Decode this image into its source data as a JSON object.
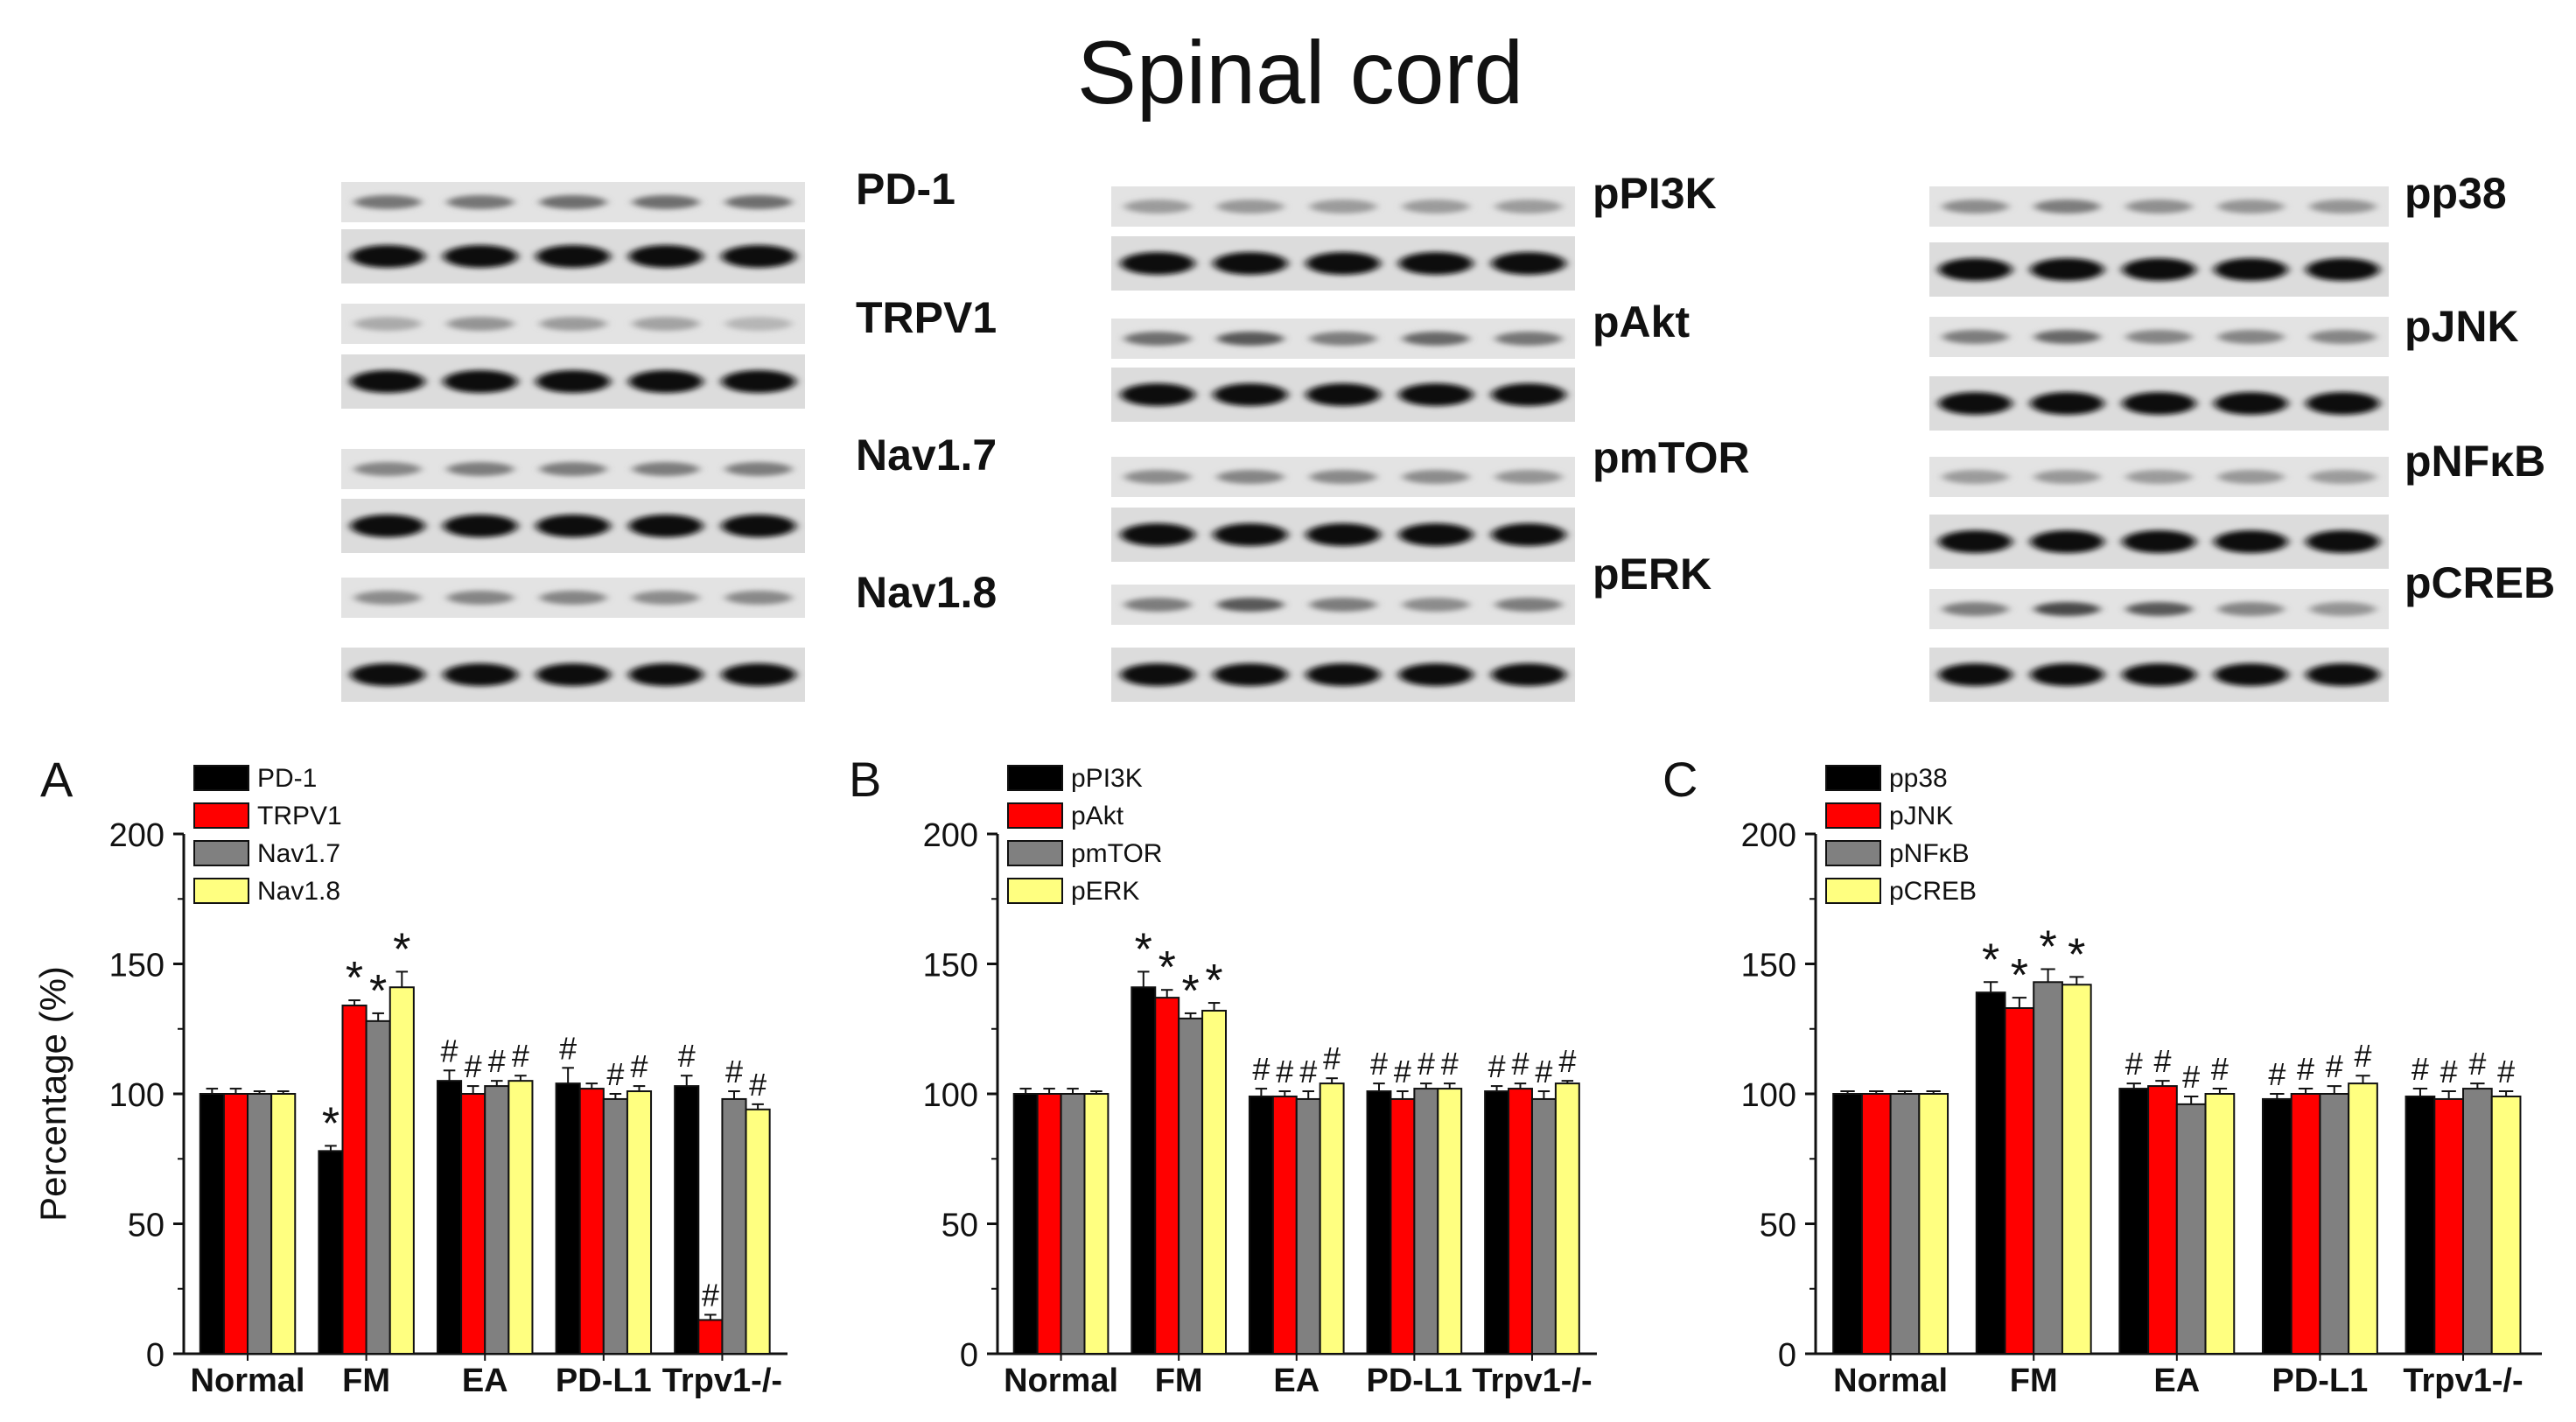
{
  "figure": {
    "title": "Spinal cord",
    "y_axis_label": "Percentage (%)",
    "panel_letters": [
      "A",
      "B",
      "C"
    ]
  },
  "western_blots": [
    {
      "labels": [
        "PD-1",
        "TRPV1",
        "Nav1.7",
        "Nav1.8"
      ],
      "lanes": 5,
      "phospho_intensity": [
        [
          0.55,
          0.55,
          0.6,
          0.6,
          0.6
        ],
        [
          0.2,
          0.35,
          0.3,
          0.25,
          0.12
        ],
        [
          0.45,
          0.5,
          0.5,
          0.5,
          0.5
        ],
        [
          0.4,
          0.45,
          0.45,
          0.4,
          0.42
        ]
      ]
    },
    {
      "labels": [
        "pPI3K",
        "pAkt",
        "pmTOR",
        "pERK"
      ],
      "lanes": 5,
      "phospho_intensity": [
        [
          0.3,
          0.32,
          0.3,
          0.3,
          0.3
        ],
        [
          0.6,
          0.75,
          0.5,
          0.65,
          0.55
        ],
        [
          0.4,
          0.45,
          0.42,
          0.4,
          0.35
        ],
        [
          0.5,
          0.75,
          0.5,
          0.4,
          0.5
        ]
      ]
    },
    {
      "labels": [
        "pp38",
        "pJNK",
        "pNFκB",
        "pCREB"
      ],
      "lanes": 5,
      "phospho_intensity": [
        [
          0.4,
          0.5,
          0.38,
          0.35,
          0.35
        ],
        [
          0.5,
          0.65,
          0.45,
          0.45,
          0.45
        ],
        [
          0.3,
          0.32,
          0.3,
          0.32,
          0.3
        ],
        [
          0.5,
          0.85,
          0.75,
          0.45,
          0.35
        ]
      ]
    }
  ],
  "colors": {
    "series": [
      "#000000",
      "#ff0000",
      "#808080",
      "#ffff80"
    ]
  },
  "chart_data": [
    {
      "type": "bar",
      "panel": "A",
      "categories": [
        "Normal",
        "FM",
        "EA",
        "PD-L1",
        "Trpv1-/-"
      ],
      "ylim": [
        0,
        200
      ],
      "yticks": [
        0,
        50,
        100,
        150,
        200
      ],
      "legend_position": "top-left",
      "series": [
        {
          "name": "PD-1",
          "values": [
            100,
            78,
            105,
            104,
            103
          ],
          "errors": [
            2,
            2,
            4,
            6,
            4
          ]
        },
        {
          "name": "TRPV1",
          "values": [
            100,
            134,
            100,
            102,
            13
          ],
          "errors": [
            2,
            2,
            3,
            2,
            2
          ]
        },
        {
          "name": "Nav1.7",
          "values": [
            100,
            128,
            103,
            98,
            98
          ],
          "errors": [
            1,
            3,
            2,
            2,
            3
          ]
        },
        {
          "name": "Nav1.8",
          "values": [
            100,
            141,
            105,
            101,
            94
          ],
          "errors": [
            1,
            6,
            2,
            2,
            2
          ]
        }
      ],
      "annotations": [
        [
          "",
          "",
          "",
          ""
        ],
        [
          "*",
          "*",
          "*",
          "*"
        ],
        [
          "#",
          "#",
          "#",
          "#"
        ],
        [
          "#",
          "",
          "#",
          "#"
        ],
        [
          "#",
          "#",
          "#",
          "#"
        ]
      ]
    },
    {
      "type": "bar",
      "panel": "B",
      "categories": [
        "Normal",
        "FM",
        "EA",
        "PD-L1",
        "Trpv1-/-"
      ],
      "ylim": [
        0,
        200
      ],
      "yticks": [
        0,
        50,
        100,
        150,
        200
      ],
      "legend_position": "top-left",
      "series": [
        {
          "name": "pPI3K",
          "values": [
            100,
            141,
            99,
            101,
            101
          ],
          "errors": [
            2,
            6,
            3,
            3,
            2
          ]
        },
        {
          "name": "pAkt",
          "values": [
            100,
            137,
            99,
            98,
            102
          ],
          "errors": [
            2,
            3,
            2,
            3,
            2
          ]
        },
        {
          "name": "pmTOR",
          "values": [
            100,
            129,
            98,
            102,
            98
          ],
          "errors": [
            2,
            2,
            3,
            2,
            3
          ]
        },
        {
          "name": "pERK",
          "values": [
            100,
            132,
            104,
            102,
            104
          ],
          "errors": [
            1,
            3,
            2,
            2,
            1
          ]
        }
      ],
      "annotations": [
        [
          "",
          "",
          "",
          ""
        ],
        [
          "*",
          "*",
          "*",
          "*"
        ],
        [
          "#",
          "#",
          "#",
          "#"
        ],
        [
          "#",
          "#",
          "#",
          "#"
        ],
        [
          "#",
          "#",
          "#",
          "#"
        ]
      ]
    },
    {
      "type": "bar",
      "panel": "C",
      "categories": [
        "Normal",
        "FM",
        "EA",
        "PD-L1",
        "Trpv1-/-"
      ],
      "ylim": [
        0,
        200
      ],
      "yticks": [
        0,
        50,
        100,
        150,
        200
      ],
      "legend_position": "top-left",
      "series": [
        {
          "name": "pp38",
          "values": [
            100,
            139,
            102,
            98,
            99
          ],
          "errors": [
            1,
            4,
            2,
            2,
            3
          ]
        },
        {
          "name": "pJNK",
          "values": [
            100,
            133,
            103,
            100,
            98
          ],
          "errors": [
            1,
            4,
            2,
            2,
            3
          ]
        },
        {
          "name": "pNFκB",
          "values": [
            100,
            143,
            96,
            100,
            102
          ],
          "errors": [
            1,
            5,
            3,
            3,
            2
          ]
        },
        {
          "name": "pCREB",
          "values": [
            100,
            142,
            100,
            104,
            99
          ],
          "errors": [
            1,
            3,
            2,
            3,
            2
          ]
        }
      ],
      "annotations": [
        [
          "",
          "",
          "",
          ""
        ],
        [
          "*",
          "*",
          "*",
          "*"
        ],
        [
          "#",
          "#",
          "#",
          "#"
        ],
        [
          "#",
          "#",
          "#",
          "#"
        ],
        [
          "#",
          "#",
          "#",
          "#"
        ]
      ]
    }
  ]
}
